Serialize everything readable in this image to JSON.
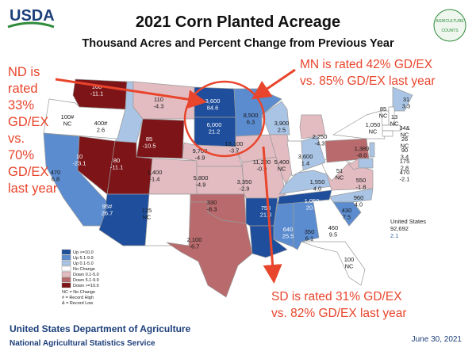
{
  "header": {
    "logo": "USDA",
    "title": "2021 Corn Planted Acreage",
    "subtitle": "Thousand Acres and Percent Change from Previous Year",
    "seal": [
      "AGRICULTURE",
      "COUNTS"
    ]
  },
  "annotations": {
    "nd": [
      "ND is",
      "rated",
      "33%",
      "GD/EX",
      "vs.",
      "70%",
      "GD/EX",
      "last year"
    ],
    "mn": [
      "MN is rated 42% GD/EX",
      "vs. 85% GD/EX last year"
    ],
    "sd": [
      "SD is rated 31% GD/EX",
      "vs. 82% GD/EX last year"
    ]
  },
  "states": [
    {
      "amount": "160",
      "change": "-11.1",
      "color": "#7d1418"
    },
    {
      "amount": "100#",
      "change": "NC",
      "color": "#ffffff"
    },
    {
      "amount": "470",
      "change": "6.8",
      "color": "#5b8ccf"
    },
    {
      "amount": "10",
      "change": "-23.1",
      "color": "#7d1418"
    },
    {
      "amount": "400#",
      "change": "2.6",
      "color": "#a9c4e4"
    },
    {
      "amount": "110",
      "change": "-4.3",
      "color": "#e3bcc2"
    },
    {
      "amount": "85",
      "change": "-10.5",
      "color": "#7d1418"
    },
    {
      "amount": "80",
      "change": "-11.1",
      "color": "#7d1418"
    },
    {
      "amount": "95#",
      "change": "26.7",
      "color": "#1f4e9c"
    },
    {
      "amount": "1,400",
      "change": "-1.4",
      "color": "#e3bcc2"
    },
    {
      "amount": "125",
      "change": "NC",
      "color": "#ffffff"
    },
    {
      "amount": "3,600",
      "change": "84.6",
      "color": "#1f4e9c"
    },
    {
      "amount": "6,000",
      "change": "21.2",
      "color": "#1f4e9c"
    },
    {
      "amount": "9,700",
      "change": "-4.9",
      "color": "#e3bcc2"
    },
    {
      "amount": "5,800",
      "change": "-4.9",
      "color": "#e3bcc2"
    },
    {
      "amount": "330",
      "change": "-8.3",
      "color": "#b86a6c"
    },
    {
      "amount": "2,100",
      "change": "-6.7",
      "color": "#b86a6c"
    },
    {
      "amount": "8,500",
      "change": "6.3",
      "color": "#5b8ccf"
    },
    {
      "amount": "13,100",
      "change": "-3.7",
      "color": "#e3bcc2"
    },
    {
      "amount": "3,350",
      "change": "-2.9",
      "color": "#e3bcc2"
    },
    {
      "amount": "750",
      "change": "21.0",
      "color": "#1f4e9c"
    },
    {
      "amount": "640",
      "change": "25.5",
      "color": "#1f4e9c"
    },
    {
      "amount": "350",
      "change": "6.1",
      "color": "#5b8ccf"
    },
    {
      "amount": "460",
      "change": "9.5",
      "color": "#5b8ccf"
    },
    {
      "amount": "430",
      "change": "7.5",
      "color": "#5b8ccf"
    },
    {
      "amount": "100",
      "change": "NC",
      "color": "#ffffff"
    },
    {
      "amount": "960",
      "change": "4.0",
      "color": "#a9c4e4"
    },
    {
      "amount": "1,050",
      "change": "20.7",
      "color": "#1f4e9c"
    },
    {
      "amount": "1,550",
      "change": "4.0",
      "color": "#a9c4e4"
    },
    {
      "amount": "550",
      "change": "-1.8",
      "color": "#e3bcc2"
    },
    {
      "amount": "51",
      "change": "NC",
      "color": "#ffffff"
    },
    {
      "amount": "3,900",
      "change": "2.5",
      "color": "#a9c4e4"
    },
    {
      "amount": "11,200",
      "change": "-0.9",
      "color": "#e3bcc2"
    },
    {
      "amount": "5,400",
      "change": "NC",
      "color": "#ffffff"
    },
    {
      "amount": "3,600",
      "change": "1.4",
      "color": "#a9c4e4"
    },
    {
      "amount": "2,250",
      "change": "-4.3",
      "color": "#e3bcc2"
    },
    {
      "amount": "1,380",
      "change": "-8.0",
      "color": "#b86a6c"
    },
    {
      "amount": "1,050",
      "change": "NC",
      "color": "#ffffff"
    },
    {
      "amount": "31",
      "change": "3.3",
      "color": "#a9c4e4"
    },
    {
      "amount": "85",
      "change": "NC",
      "color": "#ffffff"
    },
    {
      "amount": "13",
      "change": "NC",
      "color": "#ffffff"
    },
    {
      "amount": "34&",
      "change": "NC",
      "color": "#ffffff"
    },
    {
      "amount": "26",
      "change": "NC",
      "color": "#ffffff"
    },
    {
      "amount": "90",
      "change": "3.4",
      "color": "#a9c4e4"
    },
    {
      "amount": "175",
      "change": "2.8",
      "color": "#a9c4e4"
    },
    {
      "amount": "470",
      "change": "-2.1",
      "color": "#e3bcc2"
    }
  ],
  "national": {
    "label": "United States",
    "amount": "92,692",
    "change": "2.1"
  },
  "legend": {
    "items": [
      {
        "label": "Up >=10.0",
        "color": "#1f4e9c"
      },
      {
        "label": "Up 5.1-9.9",
        "color": "#5b8ccf"
      },
      {
        "label": "Up 0.1-5.0",
        "color": "#a9c4e4"
      },
      {
        "label": "No Change",
        "color": "#ffffff"
      },
      {
        "label": "Down 0.1-5.0",
        "color": "#e3bcc2"
      },
      {
        "label": "Down 5.1-9.9",
        "color": "#b86a6c"
      },
      {
        "label": "Down >=10.0",
        "color": "#7d1418"
      }
    ],
    "notes": [
      "NC = No Change",
      "# = Record High",
      "& = Record Low"
    ]
  },
  "footer": {
    "agency": "United States Department of Agriculture",
    "service": "National Agricultural Statistics Service",
    "date": "June 30, 2021"
  }
}
